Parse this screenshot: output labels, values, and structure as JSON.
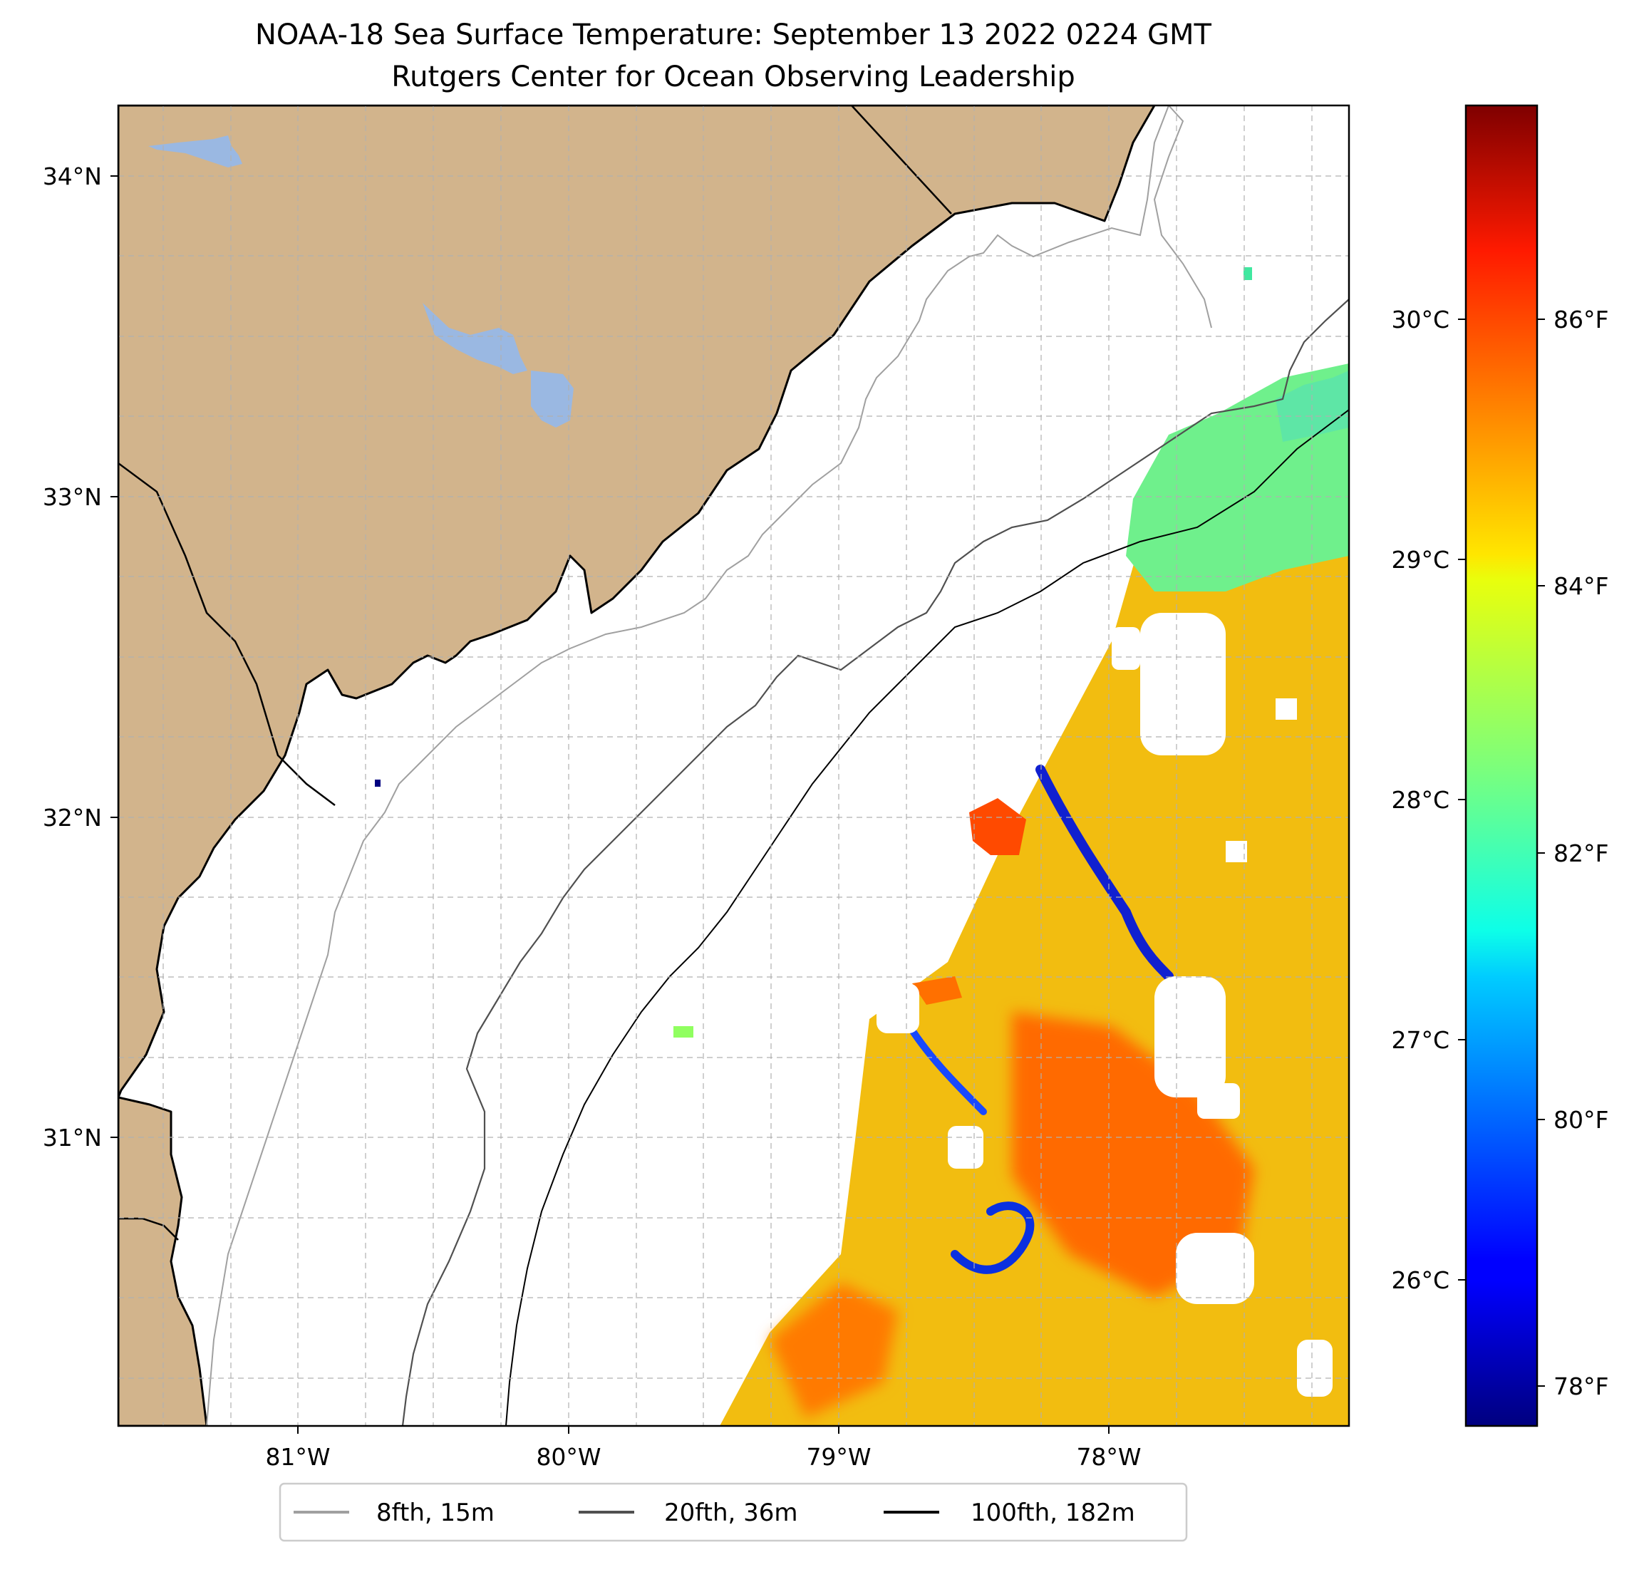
{
  "title": {
    "line1": "NOAA-18 Sea Surface Temperature: September 13 2022 0224 GMT",
    "line2": "Rutgers Center for Ocean Observing Leadership"
  },
  "map": {
    "lon_range": [
      -81.67,
      -77.12
    ],
    "lat_range": [
      30.07,
      34.22
    ],
    "x_ticks": [
      {
        "value": -81,
        "label": "81°W"
      },
      {
        "value": -80,
        "label": "80°W"
      },
      {
        "value": -79,
        "label": "79°W"
      },
      {
        "value": -78,
        "label": "78°W"
      }
    ],
    "y_ticks": [
      {
        "value": 34,
        "label": "34°N"
      },
      {
        "value": 33,
        "label": "33°N"
      },
      {
        "value": 32,
        "label": "32°N"
      },
      {
        "value": 31,
        "label": "31°N"
      }
    ],
    "colors": {
      "land": "#d2b48c",
      "water": "#9ab8e2",
      "ocean": "#ffffff",
      "grid": "#b0b0b0"
    }
  },
  "colorbar": {
    "colormap": "jet",
    "celsius_range": [
      25.4,
      31.0
    ],
    "celsius_ticks": [
      {
        "value": 26,
        "label": "26°C"
      },
      {
        "value": 27,
        "label": "27°C"
      },
      {
        "value": 28,
        "label": "28°C"
      },
      {
        "value": 29,
        "label": "29°C"
      },
      {
        "value": 30,
        "label": "30°C"
      }
    ],
    "fahrenheit_ticks": [
      {
        "value": 78,
        "label": "78°F"
      },
      {
        "value": 80,
        "label": "80°F"
      },
      {
        "value": 82,
        "label": "82°F"
      },
      {
        "value": 84,
        "label": "84°F"
      },
      {
        "value": 86,
        "label": "86°F"
      }
    ]
  },
  "legend": {
    "items": [
      {
        "label": "8fth, 15m",
        "color": "#a0a0a0"
      },
      {
        "label": "20fth, 36m",
        "color": "#505050"
      },
      {
        "label": "100fth, 182m",
        "color": "#000000"
      }
    ]
  }
}
